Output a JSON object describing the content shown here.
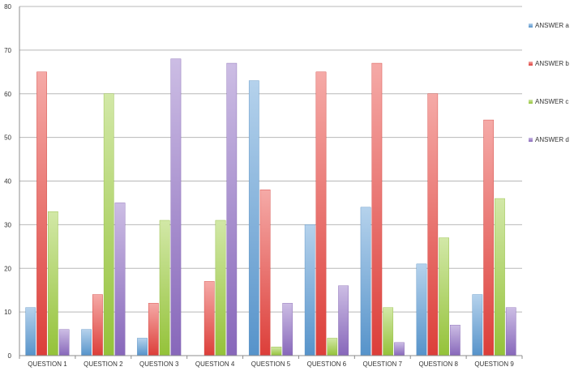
{
  "chart_data": {
    "type": "bar",
    "categories": [
      "QUESTION 1",
      "QUESTION 2",
      "QUESTION 3",
      "QUESTION 4",
      "QUESTION 5",
      "QUESTION 6",
      "QUESTION 7",
      "QUESTION 8",
      "QUESTION 9"
    ],
    "series": [
      {
        "name": "ANSWER a",
        "color": "#5b9bd5",
        "values": [
          11,
          6,
          4,
          0,
          63,
          30,
          34,
          21,
          14
        ]
      },
      {
        "name": "ANSWER b",
        "color": "#e8413c",
        "values": [
          65,
          14,
          12,
          17,
          38,
          65,
          67,
          60,
          54
        ]
      },
      {
        "name": "ANSWER c",
        "color": "#9ccc3c",
        "values": [
          33,
          60,
          31,
          31,
          2,
          4,
          11,
          27,
          36
        ]
      },
      {
        "name": "ANSWER d",
        "color": "#8e6cc4",
        "values": [
          6,
          35,
          68,
          67,
          12,
          16,
          3,
          7,
          11
        ]
      }
    ],
    "ylim": [
      0,
      80
    ],
    "yticks": [
      0,
      10,
      20,
      30,
      40,
      50,
      60,
      70,
      80
    ],
    "grid": true,
    "legend_position": "right"
  }
}
